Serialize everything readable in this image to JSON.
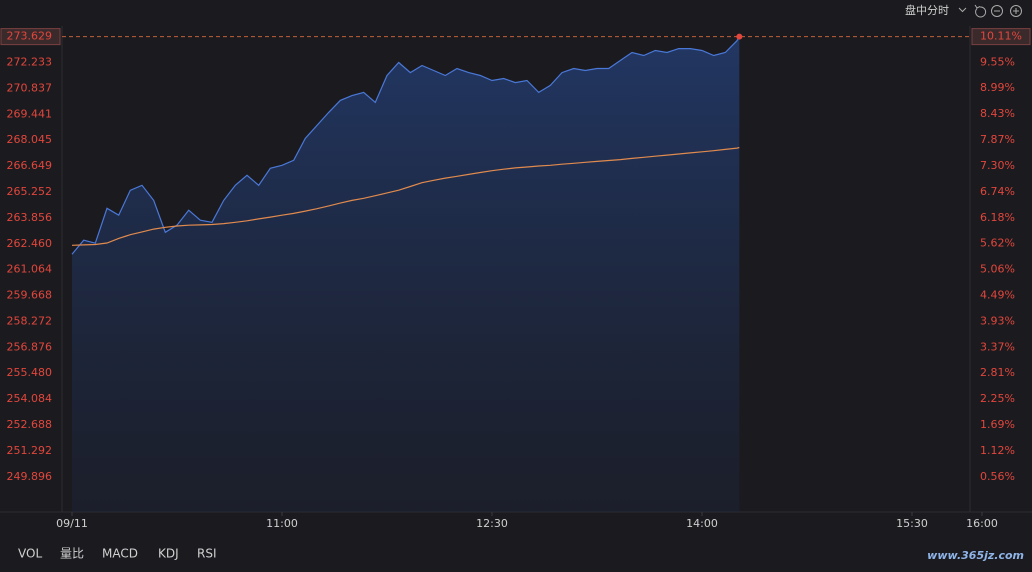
{
  "chart_data": {
    "type": "line",
    "x": [
      "09:30",
      "09:35",
      "09:40",
      "09:45",
      "09:50",
      "09:55",
      "10:00",
      "10:05",
      "10:10",
      "10:15",
      "10:20",
      "10:25",
      "10:30",
      "10:35",
      "10:40",
      "10:45",
      "10:50",
      "10:55",
      "11:00",
      "11:05",
      "11:10",
      "11:15",
      "11:20",
      "11:25",
      "11:30",
      "11:35",
      "11:40",
      "11:45",
      "11:50",
      "11:55",
      "12:00",
      "12:05",
      "12:10",
      "12:15",
      "12:20",
      "12:25",
      "12:30",
      "12:35",
      "12:40",
      "12:45",
      "12:50",
      "12:55",
      "13:00",
      "13:05",
      "13:10",
      "13:15",
      "13:20",
      "13:25",
      "13:30",
      "13:35",
      "13:40",
      "13:45",
      "13:50",
      "13:55",
      "14:00",
      "14:05",
      "14:10",
      "14:15",
      "14:16"
    ],
    "series": [
      {
        "color": "#4a78d8",
        "values": [
          261.9,
          262.65,
          262.49,
          264.37,
          264.0,
          265.34,
          265.61,
          264.8,
          263.08,
          263.46,
          264.27,
          263.73,
          263.62,
          264.8,
          265.61,
          266.15,
          265.61,
          266.53,
          266.69,
          266.96,
          268.14,
          268.84,
          269.54,
          270.19,
          270.45,
          270.62,
          270.08,
          271.53,
          272.23,
          271.69,
          272.07,
          271.8,
          271.53,
          271.91,
          271.69,
          271.53,
          271.26,
          271.37,
          271.15,
          271.26,
          270.62,
          271.0,
          271.69,
          271.91,
          271.8,
          271.91,
          271.91,
          272.34,
          272.77,
          272.61,
          272.88,
          272.77,
          272.98,
          272.98,
          272.88,
          272.61,
          272.77,
          273.41,
          273.629
        ]
      },
      {
        "color": "#e08a4e",
        "values": [
          262.38,
          262.4,
          262.42,
          262.5,
          262.75,
          262.95,
          263.1,
          263.25,
          263.35,
          263.42,
          263.46,
          263.48,
          263.5,
          263.55,
          263.62,
          263.7,
          263.8,
          263.9,
          264.0,
          264.1,
          264.22,
          264.35,
          264.5,
          264.65,
          264.8,
          264.91,
          265.05,
          265.2,
          265.35,
          265.55,
          265.75,
          265.88,
          266.0,
          266.1,
          266.2,
          266.3,
          266.4,
          266.48,
          266.55,
          266.6,
          266.65,
          266.69,
          266.75,
          266.8,
          266.85,
          266.9,
          266.95,
          267.0,
          267.06,
          267.12,
          267.18,
          267.24,
          267.3,
          267.36,
          267.42,
          267.48,
          267.55,
          267.62,
          267.65
        ]
      }
    ],
    "xlim": [
      "09:30",
      "16:00"
    ],
    "xticks": [
      {
        "value": "09:30",
        "label": "09/11"
      },
      "11:00",
      "12:30",
      "14:00",
      "15:30",
      "16:00"
    ],
    "ylim": [
      248.0,
      274.2
    ],
    "yticks": [
      {
        "value": 273.629,
        "label": "273.629"
      },
      {
        "value": 272.233,
        "label": "272.233"
      },
      {
        "value": 270.837,
        "label": "270.837"
      },
      {
        "value": 269.441,
        "label": "269.441"
      },
      {
        "value": 268.045,
        "label": "268.045"
      },
      {
        "value": 266.649,
        "label": "266.649"
      },
      {
        "value": 265.252,
        "label": "265.252"
      },
      {
        "value": 263.856,
        "label": "263.856"
      },
      {
        "value": 262.46,
        "label": "262.460"
      },
      {
        "value": 261.064,
        "label": "261.064"
      },
      {
        "value": 259.668,
        "label": "259.668"
      },
      {
        "value": 258.272,
        "label": "258.272"
      },
      {
        "value": 256.876,
        "label": "256.876"
      },
      {
        "value": 255.48,
        "label": "255.480"
      },
      {
        "value": 254.084,
        "label": "254.084"
      },
      {
        "value": 252.688,
        "label": "252.688"
      },
      {
        "value": 251.292,
        "label": "251.292"
      },
      {
        "value": 249.896,
        "label": "249.896"
      }
    ],
    "y2lim": [
      -0.2,
      10.34
    ],
    "y2ticks": [
      {
        "value": 10.11,
        "label": "10.11%"
      },
      {
        "value": 9.55,
        "label": "9.55%"
      },
      {
        "value": 8.99,
        "label": "8.99%"
      },
      {
        "value": 8.43,
        "label": "8.43%"
      },
      {
        "value": 7.87,
        "label": "7.87%"
      },
      {
        "value": 7.3,
        "label": "7.30%"
      },
      {
        "value": 6.74,
        "label": "6.74%"
      },
      {
        "value": 6.18,
        "label": "6.18%"
      },
      {
        "value": 5.62,
        "label": "5.62%"
      },
      {
        "value": 5.06,
        "label": "5.06%"
      },
      {
        "value": 4.49,
        "label": "4.49%"
      },
      {
        "value": 3.93,
        "label": "3.93%"
      },
      {
        "value": 3.37,
        "label": "3.37%"
      },
      {
        "value": 2.81,
        "label": "2.81%"
      },
      {
        "value": 2.25,
        "label": "2.25%"
      },
      {
        "value": 1.69,
        "label": "1.69%"
      },
      {
        "value": 1.12,
        "label": "1.12%"
      },
      {
        "value": 0.56,
        "label": "0.56%"
      }
    ],
    "tick_color": "#e2463c"
  },
  "toolbar": {
    "mode": "盘中分时"
  },
  "indicator_tabs": [
    "VOL",
    "量比",
    "MACD",
    "KDJ",
    "RSI"
  ],
  "watermark": "www.365jz.com"
}
